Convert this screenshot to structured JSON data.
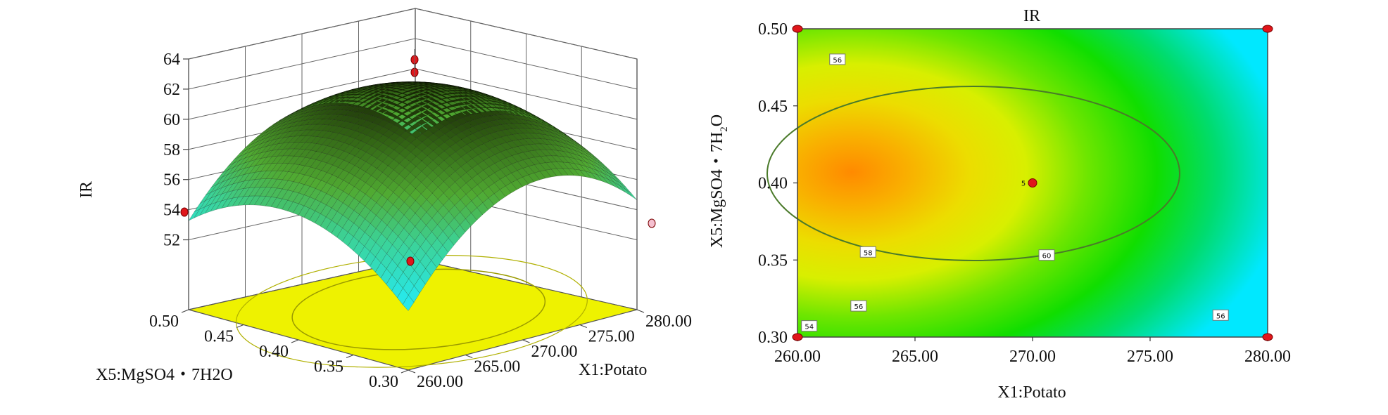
{
  "chart_data": [
    {
      "type": "surface",
      "panel": "left",
      "zlabel": "IR",
      "xlabel": "X1:Potato",
      "ylabel": "X5:MgSO4・7H2O",
      "x_ticks": [
        "260.00",
        "265.00",
        "270.00",
        "275.00",
        "280.00"
      ],
      "y_ticks": [
        "0.30",
        "0.35",
        "0.40",
        "0.45",
        "0.50"
      ],
      "z_ticks": [
        "52",
        "54",
        "56",
        "58",
        "60",
        "62",
        "64"
      ],
      "xlim": [
        260,
        280
      ],
      "ylim": [
        0.3,
        0.5
      ],
      "zlim": [
        51,
        64
      ],
      "design_points": [
        {
          "x": 270,
          "y": 0.4,
          "z": 62.9
        },
        {
          "x": 270,
          "y": 0.4,
          "z": 62.2
        },
        {
          "x": 260,
          "y": 0.5,
          "z": 53.7
        },
        {
          "x": 280,
          "y": 0.3,
          "z": 53.2
        },
        {
          "x": 260,
          "y": 0.3,
          "z": 51.2
        }
      ],
      "surface_peak": {
        "x": 271.5,
        "y": 0.41,
        "z": 61.8
      }
    },
    {
      "type": "contour",
      "panel": "right",
      "title": "IR",
      "xlabel": "X1:Potato",
      "ylabel": "X5:MgSO4・7H2O",
      "x_ticks": [
        "260.00",
        "265.00",
        "270.00",
        "275.00",
        "280.00"
      ],
      "y_ticks": [
        "0.30",
        "0.35",
        "0.40",
        "0.45",
        "0.50"
      ],
      "xlim": [
        260,
        280
      ],
      "ylim": [
        0.3,
        0.5
      ],
      "contour_labels": [
        {
          "text": "56",
          "x": 261.7,
          "y": 0.48
        },
        {
          "text": "58",
          "x": 263.0,
          "y": 0.355
        },
        {
          "text": "56",
          "x": 262.6,
          "y": 0.32
        },
        {
          "text": "54",
          "x": 260.5,
          "y": 0.307
        },
        {
          "text": "60",
          "x": 270.6,
          "y": 0.353
        },
        {
          "text": "56",
          "x": 278.0,
          "y": 0.314
        }
      ],
      "center_point": {
        "x": 270,
        "y": 0.4,
        "label": "5"
      },
      "corner_points": [
        {
          "x": 260,
          "y": 0.5
        },
        {
          "x": 280,
          "y": 0.5
        },
        {
          "x": 260,
          "y": 0.3
        },
        {
          "x": 280,
          "y": 0.3
        }
      ],
      "colors": {
        "low": "#00e5ff",
        "mid": "#00e000",
        "upper": "#e8f000",
        "peak": "#ff8a00",
        "point": "#e0161b"
      }
    }
  ]
}
